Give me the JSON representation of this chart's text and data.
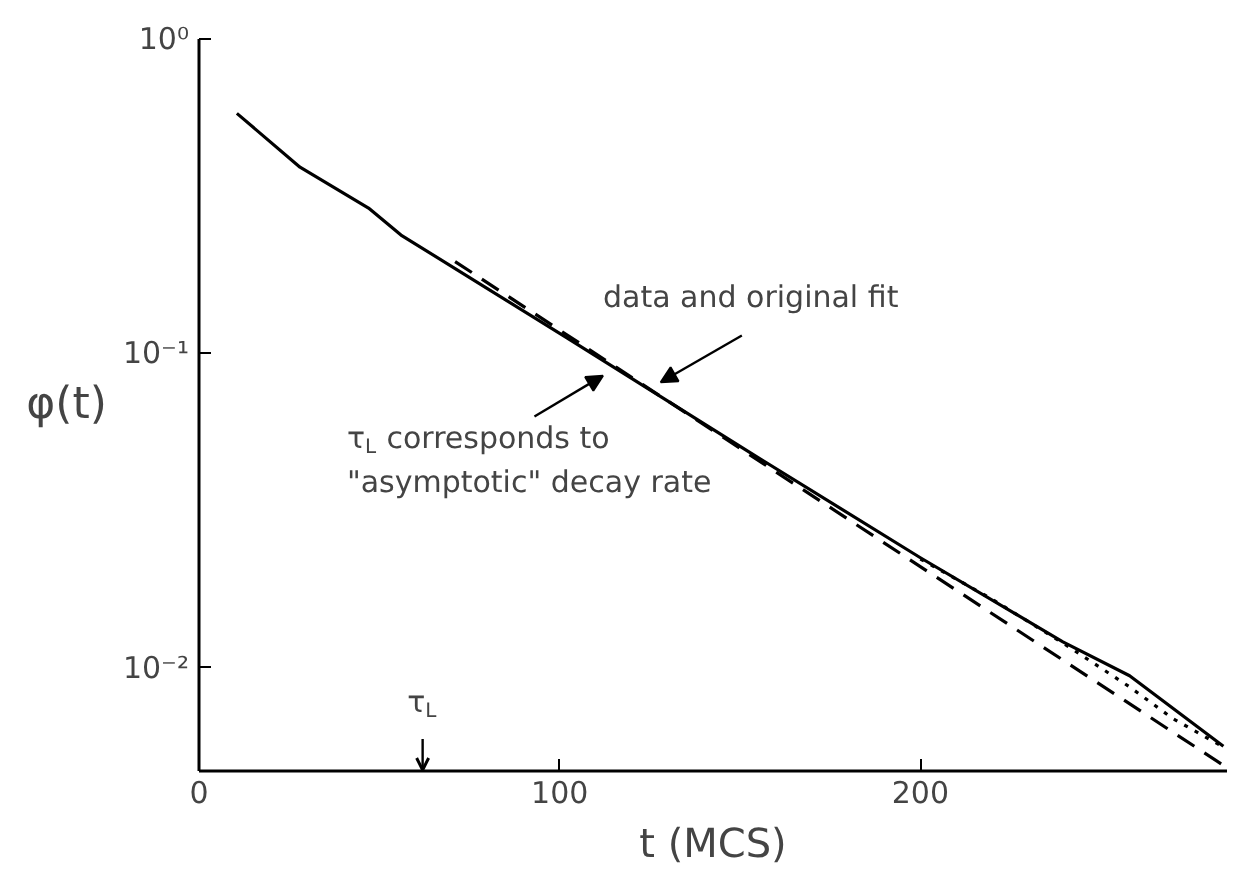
{
  "chart_data": {
    "type": "line",
    "xlabel": "t (MCS)",
    "ylabel": "φ(t)",
    "log": "y",
    "grid": false,
    "marker": "none",
    "xlim": [
      0,
      285
    ],
    "xticks": [
      0,
      100,
      200
    ],
    "ylim": [
      0.0047,
      1
    ],
    "yticks": [
      {
        "value": 1,
        "label": "10⁰"
      },
      {
        "value": 0.1,
        "label": "10⁻¹"
      },
      {
        "value": 0.01,
        "label": "10⁻²"
      }
    ],
    "series": [
      {
        "color": "#000000",
        "line_style": "solid",
        "x": [
          10.5,
          28,
          47,
          56,
          102,
          156,
          200,
          239.5,
          258,
          284
        ],
        "values": [
          0.58,
          0.391,
          0.29,
          0.238,
          0.112,
          0.0459,
          0.0224,
          0.0121,
          0.00944,
          0.00563
        ]
      },
      {
        "color": "#000000",
        "line_style": "dotted",
        "x": [
          200,
          220,
          240,
          258,
          270,
          284
        ],
        "values": [
          0.0222,
          0.0165,
          0.0119,
          0.0087,
          0.0069,
          0.0056
        ]
      },
      {
        "color": "#000000",
        "line_style": "dashed",
        "x": [
          71,
          284
        ],
        "values": [
          0.196,
          0.0049
        ]
      }
    ],
    "annotations": [
      "data and original fit",
      "τ$_{L}$ corresponds to\n\"asymptotic\" decay rate",
      "τ$_{L}$"
    ]
  }
}
